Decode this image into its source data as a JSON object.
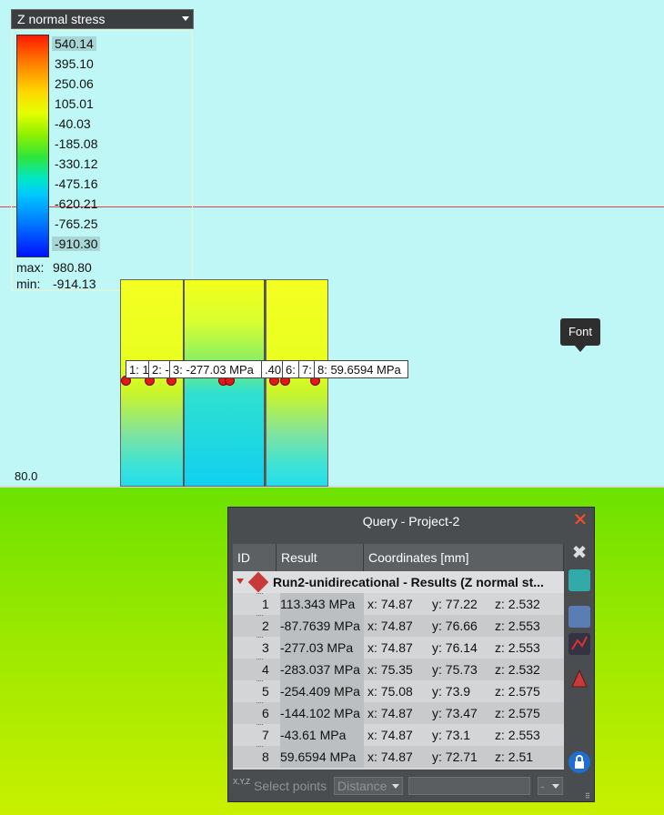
{
  "legend": {
    "title": "Z normal stress",
    "values": [
      "540.14",
      "395.10",
      "250.06",
      "105.01",
      "-40.03",
      "-185.08",
      "-330.12",
      "-475.16",
      "-620.21",
      "-765.25",
      "-910.30"
    ],
    "max_label": "max:",
    "max_value": "980.80",
    "min_label": "min:",
    "min_value": "-914.13"
  },
  "viewport": {
    "scale_label": "80.0",
    "tooltip": "Font",
    "point_labels": [
      "1: 1",
      "2: -",
      "3: -277.03 MPa",
      ".40",
      "6:",
      "7:",
      "8: 59.6594 MPa"
    ]
  },
  "query": {
    "title": "Query - Project-2",
    "columns": [
      "ID",
      "Result",
      "Coordinates [mm]"
    ],
    "group": "Run2-unidirecational - Results (Z normal st...",
    "rows": [
      {
        "id": "1",
        "result": "113.343 MPa",
        "x": "x: 74.87",
        "y": "y: 77.22",
        "z": "z: 2.532"
      },
      {
        "id": "2",
        "result": "-87.7639 MPa",
        "x": "x: 74.87",
        "y": "y: 76.66",
        "z": "z: 2.553"
      },
      {
        "id": "3",
        "result": "-277.03 MPa",
        "x": "x: 74.87",
        "y": "y: 76.14",
        "z": "z: 2.553"
      },
      {
        "id": "4",
        "result": "-283.037 MPa",
        "x": "x: 75.35",
        "y": "y: 75.73",
        "z": "z: 2.532"
      },
      {
        "id": "5",
        "result": "-254.409 MPa",
        "x": "x: 75.08",
        "y": "y: 73.9",
        "z": "z: 2.575"
      },
      {
        "id": "6",
        "result": "-144.102 MPa",
        "x": "x: 74.87",
        "y": "y: 73.47",
        "z": "z: 2.575"
      },
      {
        "id": "7",
        "result": "-43.61 MPa",
        "x": "x: 74.87",
        "y": "y: 73.1",
        "z": "z: 2.553"
      },
      {
        "id": "8",
        "result": "59.6594 MPa",
        "x": "x: 74.87",
        "y": "y: 72.71",
        "z": "z: 2.51"
      }
    ],
    "select_points": "Select points",
    "distance_option": "Distance",
    "small_option": "-",
    "xyz_icon_text": "X,Y,Z"
  },
  "colors": {
    "close": "#ff4b2b",
    "window_bg": "#4a4d50",
    "viewport_bg": "#bff7f7"
  }
}
